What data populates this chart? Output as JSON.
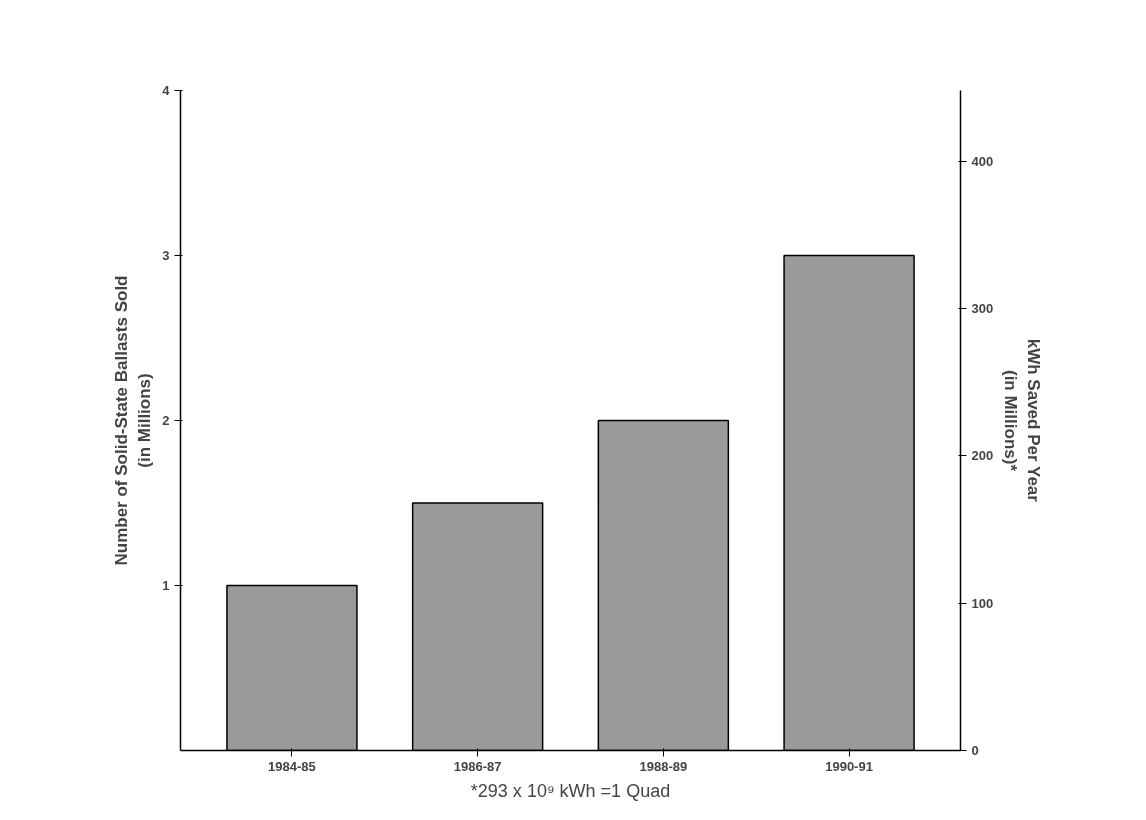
{
  "chart_data": {
    "type": "bar",
    "categories": [
      "1984-85",
      "1986-87",
      "1988-89",
      "1990-91"
    ],
    "values": [
      1,
      1.5,
      2,
      3
    ],
    "color": "#9a9a9a",
    "ylabel": "Number of Solid-State Ballasts Sold\n(in Millions)",
    "y2label": "kWh Saved Per Year\n(in Millions)*",
    "ylim": [
      0,
      4
    ],
    "yticks": [
      1,
      2,
      3,
      4
    ],
    "y2lim": [
      0,
      448
    ],
    "y2ticks": [
      0,
      100,
      200,
      300,
      400
    ],
    "annotations": [
      "*293 x 10⁹ kWh =1 Quad"
    ],
    "grid": false
  }
}
